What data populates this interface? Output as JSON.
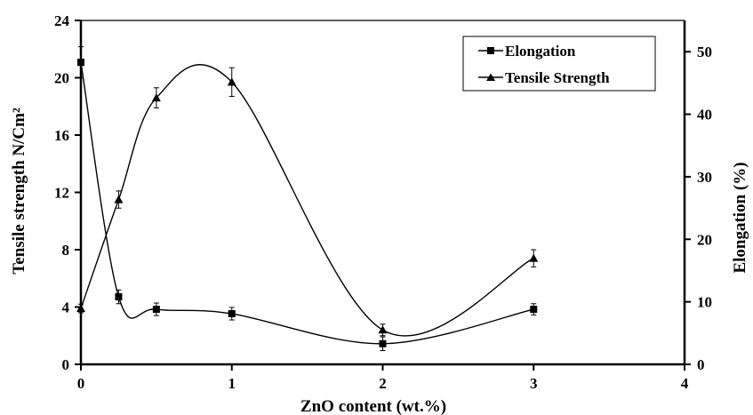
{
  "chart_data": {
    "type": "line",
    "title": "",
    "xlabel": "ZnO content (wt.%)",
    "ylabel_left": "Tensile strength N/Cm²",
    "ylabel_right": "Elongation (%)",
    "xlim": [
      0,
      4
    ],
    "ylim_left": [
      0,
      24
    ],
    "ylim_right": [
      0,
      55
    ],
    "x_ticks": [
      "0",
      "1",
      "2",
      "3",
      "4"
    ],
    "y_left_ticks": [
      "0",
      "4",
      "8",
      "12",
      "16",
      "20",
      "24"
    ],
    "y_right_ticks": [
      "0",
      "10",
      "20",
      "30",
      "40",
      "50"
    ],
    "grid": false,
    "legend_position": "top-right",
    "series": [
      {
        "name": "Elongation",
        "axis": "right",
        "marker": "square",
        "x": [
          0,
          0.25,
          0.5,
          1,
          2,
          3
        ],
        "values": [
          48.3,
          10.8,
          8.8,
          8.1,
          3.3,
          8.8
        ],
        "error": [
          2.5,
          1.1,
          1.0,
          1.0,
          1.1,
          0.9
        ]
      },
      {
        "name": "Tensile Strength",
        "axis": "left",
        "marker": "triangle",
        "x": [
          0,
          0.25,
          0.5,
          1,
          2,
          3
        ],
        "values": [
          3.9,
          11.5,
          18.6,
          19.7,
          2.4,
          7.4
        ],
        "error": [
          0.3,
          0.6,
          0.7,
          1.0,
          0.4,
          0.6
        ]
      }
    ]
  }
}
